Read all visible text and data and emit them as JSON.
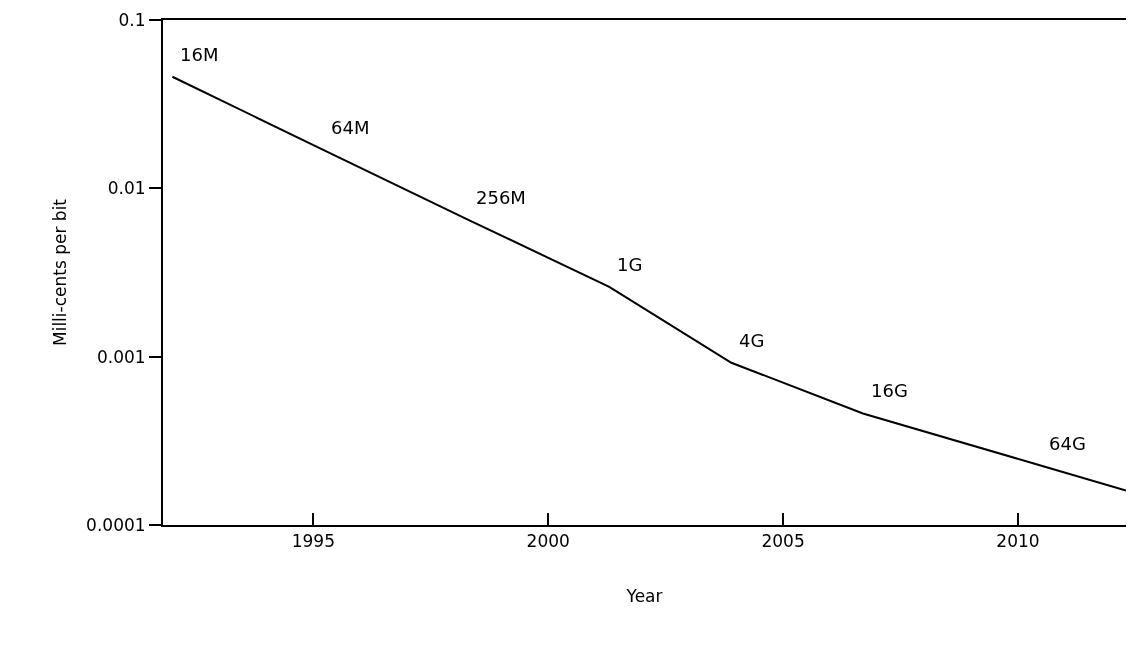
{
  "chart_data": {
    "type": "line",
    "xlabel": "Year",
    "ylabel": "Milli-cents per bit",
    "x": [
      1992,
      1995.2,
      1998.3,
      2001.3,
      2003.9,
      2006.7,
      2010.5,
      2012.3
    ],
    "series": [
      {
        "color": "#000000",
        "values": [
          0.046,
          0.017,
          0.0065,
          0.0026,
          0.00092,
          0.00046,
          0.000225,
          0.00016
        ]
      }
    ],
    "xlim": [
      1991.8,
      2012.3
    ],
    "xticks": [
      1995,
      2000,
      2005,
      2010
    ],
    "ylim": [
      0.0001,
      0.1
    ],
    "yticks": [
      0.0001,
      0.001,
      0.01,
      0.1
    ],
    "log": true,
    "marker": "none",
    "line_style": "solid",
    "annotations": [
      {
        "text": "16M",
        "x": 1992,
        "y": 0.046
      },
      {
        "text": "64M",
        "x": 1995.2,
        "y": 0.017
      },
      {
        "text": "256M",
        "x": 1998.3,
        "y": 0.0065
      },
      {
        "text": "1G",
        "x": 2001.3,
        "y": 0.0026
      },
      {
        "text": "4G",
        "x": 2003.9,
        "y": 0.00092
      },
      {
        "text": "16G",
        "x": 2006.7,
        "y": 0.00046
      },
      {
        "text": "64G",
        "x": 2010.5,
        "y": 0.000225
      }
    ]
  }
}
